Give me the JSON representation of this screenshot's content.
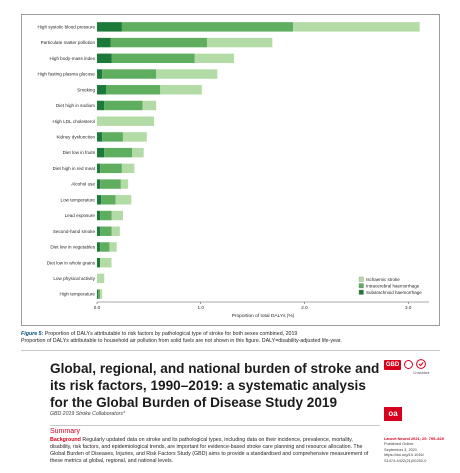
{
  "figure": {
    "chart_data": {
      "type": "bar",
      "orientation": "horizontal",
      "stacked": true,
      "categories": [
        "High systolic blood pressure",
        "Particulate matter pollution",
        "High body-mass index",
        "High fasting plasma glucose",
        "Smoking",
        "Diet high in sodium",
        "High LDL cholesterol",
        "Kidney dysfunction",
        "Diet low in fruits",
        "Diet high in red meat",
        "Alcohol use",
        "Low temperature",
        "Lead exposure",
        "Second-hand smoke",
        "Diet low in vegetables",
        "Diet low in whole grains",
        "Low physical activity",
        "High temperature"
      ],
      "series": [
        {
          "name": "Subarachnoid haemorrhage",
          "color": "#1b7a3a",
          "values": [
            0.24,
            0.13,
            0.14,
            0.05,
            0.09,
            0.07,
            0.0,
            0.05,
            0.07,
            0.03,
            0.03,
            0.04,
            0.03,
            0.03,
            0.03,
            0.03,
            0.0,
            0.01
          ]
        },
        {
          "name": "Intracerebral haemorrhage",
          "color": "#5fad5f",
          "values": [
            1.65,
            0.93,
            0.8,
            0.52,
            0.52,
            0.37,
            0.0,
            0.2,
            0.27,
            0.21,
            0.2,
            0.14,
            0.11,
            0.11,
            0.09,
            0.0,
            0.0,
            0.02
          ]
        },
        {
          "name": "Ischaemic stroke",
          "color": "#b3dba6",
          "values": [
            1.22,
            0.63,
            0.38,
            0.59,
            0.4,
            0.13,
            0.55,
            0.23,
            0.11,
            0.12,
            0.07,
            0.15,
            0.11,
            0.08,
            0.07,
            0.11,
            0.07,
            0.02
          ]
        }
      ],
      "xlabel": "Proportion of total DALYs (%)",
      "xlim": [
        0.0,
        3.2
      ],
      "xticks": [
        "0.0",
        "1.0",
        "2.0",
        "3.0"
      ],
      "legend_position": "bottom-right",
      "grid": false
    },
    "caption_label": "Figure 5:",
    "caption_title": " Proportion of DALYs attributable to risk factors by pathological type of stroke for both sexes combined, 2019",
    "caption_note": "Proportion of DALYs attributable to household air pollution from solid fuels are not shown in this figure. DALY=disability-adjusted life-year."
  },
  "article": {
    "title": "Global, regional, and national burden of stroke and its risk factors, 1990–2019: a systematic analysis for the Global Burden of Disease Study 2019",
    "authors": "GBD 2019 Stroke Collaborators*",
    "summary_heading": "Summary",
    "background_label": "Background",
    "background_text": " Regularly updated data on stroke and its pathological types, including data on their incidence, prevalence, mortality, disability, risk factors, and epidemiological trends, are important for evidence-based stroke care planning and resource allocation. The Global Burden of Diseases, Injuries, and Risk Factors Study (GBD) aims to provide a standardised and comprehensive measurement of these metrics at global, regional, and national levels."
  },
  "badges": {
    "gbd": "GBD",
    "crossmark": "CrossMark",
    "open_access": "oa"
  },
  "side_meta": {
    "journal": "Lancet Neurol 2021; 20: 795–820",
    "published": "Published Online",
    "date": "September 3, 2021",
    "doi": "https://doi.org/10.1016/",
    "pii": "S1474-4422(21)00252-0"
  }
}
